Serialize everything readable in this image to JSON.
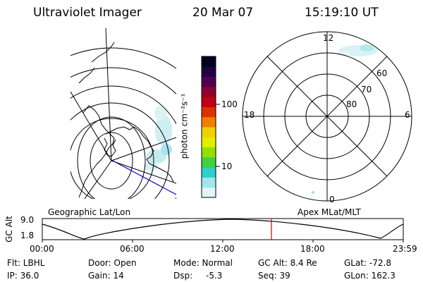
{
  "header": {
    "instrument": "Ultraviolet Imager",
    "date": "20 Mar 07",
    "time": "15:19:10 UT"
  },
  "colorbar": {
    "title": "photon cm⁻²s⁻¹",
    "ticks": [
      "100",
      "10"
    ],
    "scale": "log",
    "colors": [
      "#e0f6f8",
      "#a0e6ea",
      "#30d0c8",
      "#40d040",
      "#90e000",
      "#e0ee00",
      "#f0d000",
      "#f08000",
      "#e03000",
      "#c00010",
      "#900030",
      "#500050",
      "#200040",
      "#000020"
    ]
  },
  "left_panel": {
    "caption": "Geographic Lat/Lon",
    "track_color": "#0000cc"
  },
  "right_panel": {
    "caption": "Apex MLat/MLT",
    "mlt_labels": {
      "top": "12",
      "bottom": "0",
      "left": "18",
      "right": "6"
    },
    "lat_labels": [
      "80",
      "70",
      "60"
    ]
  },
  "altitude_strip": {
    "axis_title": "GC Alt",
    "y_labels": [
      "9.0",
      "1.8"
    ],
    "x_labels": [
      "00:00",
      "06:00",
      "12:00",
      "18:00",
      "23:59"
    ],
    "current_marker_color": "#cc0000"
  },
  "info": {
    "flt": "Flt: LBHL",
    "door": "Door: Open",
    "mode": "Mode: Normal",
    "gc_alt": "GC Alt: 8.4 Re",
    "glat": "GLat: -72.8",
    "ip": "IP: 36.0",
    "gain": "Gain: 14",
    "dsp_label": "Dsp:",
    "dsp_value": "-5.3",
    "seq": "Seq: 39",
    "glon": "GLon: 162.3"
  }
}
